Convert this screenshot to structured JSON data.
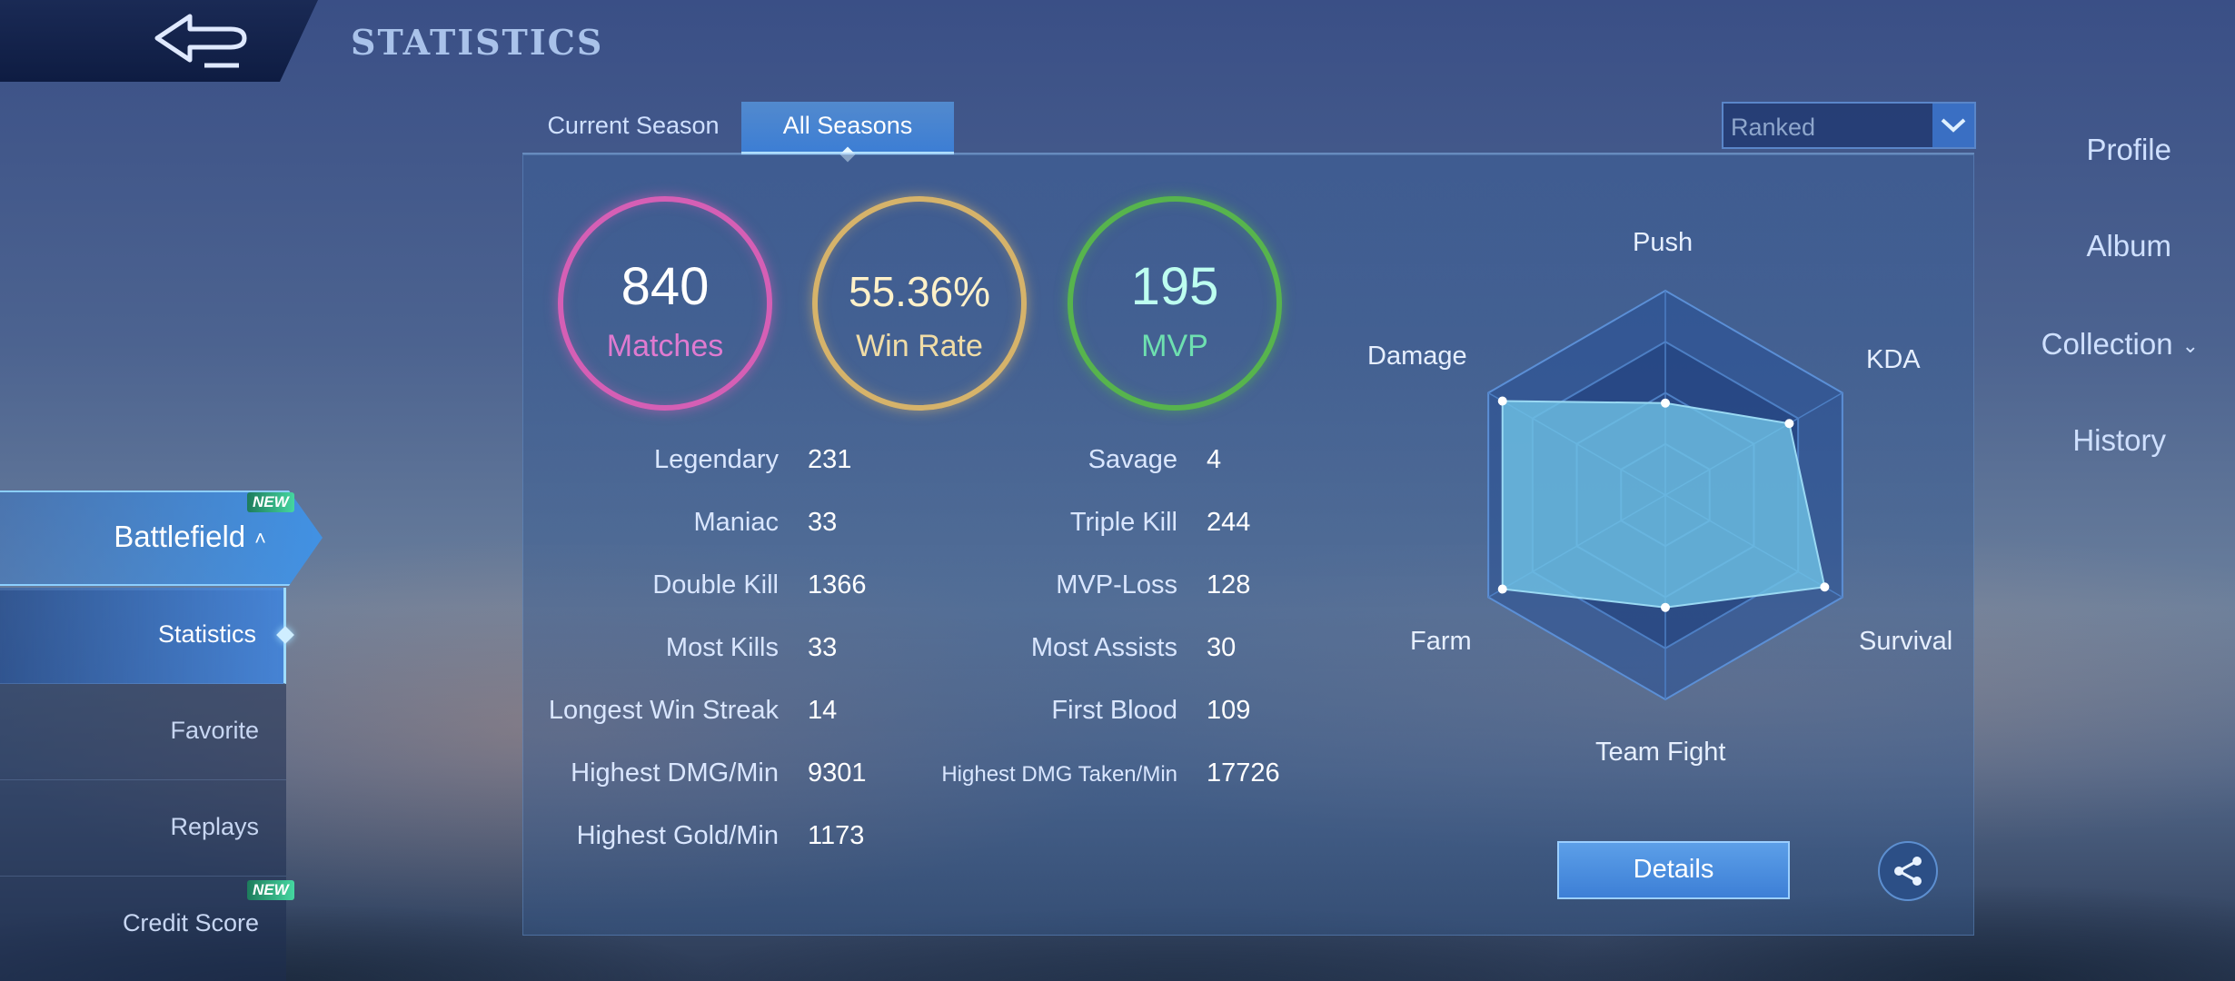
{
  "header": {
    "title": "STATISTICS"
  },
  "sidebar": {
    "items": [
      {
        "label": "Profile"
      },
      {
        "label": "Album"
      },
      {
        "label": "Collection"
      },
      {
        "label": "History"
      },
      {
        "label": "Battlefield",
        "badge": "NEW"
      }
    ],
    "subitems": [
      {
        "label": "Statistics",
        "active": true
      },
      {
        "label": "Favorite"
      },
      {
        "label": "Replays"
      },
      {
        "label": "Credit Score",
        "badge": "NEW"
      }
    ]
  },
  "tabs": [
    {
      "label": "Current Season",
      "active": false
    },
    {
      "label": "All Seasons",
      "active": true
    }
  ],
  "mode_dropdown": {
    "value": "Ranked"
  },
  "summary": {
    "matches": {
      "value": "840",
      "label": "Matches"
    },
    "win_rate": {
      "value": "55.36%",
      "label": "Win Rate"
    },
    "mvp": {
      "value": "195",
      "label": "MVP"
    }
  },
  "stats_left": [
    {
      "label": "Legendary",
      "value": "231"
    },
    {
      "label": "Maniac",
      "value": "33"
    },
    {
      "label": "Double Kill",
      "value": "1366"
    },
    {
      "label": "Most Kills",
      "value": "33"
    },
    {
      "label": "Longest Win Streak",
      "value": "14"
    },
    {
      "label": "Highest DMG/Min",
      "value": "9301"
    },
    {
      "label": "Highest Gold/Min",
      "value": "1173"
    }
  ],
  "stats_right": [
    {
      "label": "Savage",
      "value": "4"
    },
    {
      "label": "Triple Kill",
      "value": "244"
    },
    {
      "label": "MVP-Loss",
      "value": "128"
    },
    {
      "label": "Most Assists",
      "value": "30"
    },
    {
      "label": "First Blood",
      "value": "109"
    },
    {
      "label": "Highest DMG Taken/Min",
      "value": "17726"
    }
  ],
  "radar": {
    "axes": [
      "Push",
      "KDA",
      "Survival",
      "Team Fight",
      "Farm",
      "Damage"
    ],
    "levels": [
      0.45,
      0.7,
      0.9,
      0.55,
      0.92,
      0.92
    ],
    "fill_color": "#6fc3e6"
  },
  "buttons": {
    "details": "Details",
    "share_icon": "share-icon"
  },
  "colors": {
    "matches": "#d55fb5",
    "win_rate": "#d6b36a",
    "mvp": "#57b44d",
    "accent": "#3d7fd6"
  }
}
